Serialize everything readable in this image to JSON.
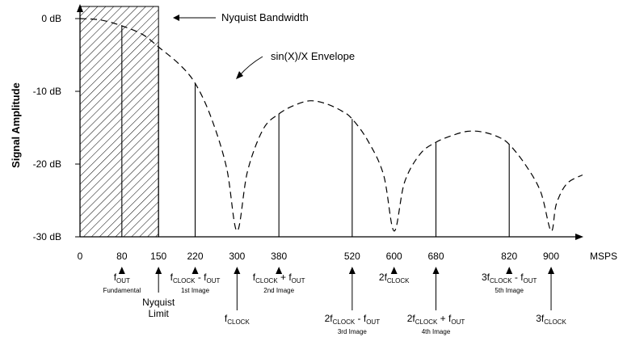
{
  "chart_data": {
    "type": "line",
    "ylabel": "Signal Amplitude",
    "xunit": "MSPS",
    "ylim": [
      -30,
      0
    ],
    "yticks": [
      {
        "v": 0,
        "label": "0 dB"
      },
      {
        "v": -10,
        "label": "-10 dB"
      },
      {
        "v": -20,
        "label": "-20 dB"
      },
      {
        "v": -30,
        "label": "-30 dB"
      }
    ],
    "xticks": [
      {
        "v": 0,
        "label": "0"
      },
      {
        "v": 80,
        "label": "80"
      },
      {
        "v": 150,
        "label": "150"
      },
      {
        "v": 220,
        "label": "220"
      },
      {
        "v": 300,
        "label": "300"
      },
      {
        "v": 380,
        "label": "380"
      },
      {
        "v": 520,
        "label": "520"
      },
      {
        "v": 600,
        "label": "600"
      },
      {
        "v": 680,
        "label": "680"
      },
      {
        "v": 820,
        "label": "820"
      },
      {
        "v": 900,
        "label": "900"
      }
    ],
    "nyquist_region": [
      0,
      150
    ],
    "envelope": {
      "style": "dashed",
      "points": [
        [
          0,
          0
        ],
        [
          40,
          -0.2
        ],
        [
          80,
          -1.0
        ],
        [
          120,
          -2.2
        ],
        [
          150,
          -3.9
        ],
        [
          190,
          -6.3
        ],
        [
          220,
          -8.9
        ],
        [
          250,
          -13.5
        ],
        [
          280,
          -20.5
        ],
        [
          300,
          -29.2
        ],
        [
          320,
          -21
        ],
        [
          350,
          -15.2
        ],
        [
          380,
          -13.1
        ],
        [
          410,
          -11.9
        ],
        [
          440,
          -11.3
        ],
        [
          470,
          -11.7
        ],
        [
          500,
          -12.7
        ],
        [
          520,
          -13.8
        ],
        [
          550,
          -16.8
        ],
        [
          580,
          -21.5
        ],
        [
          600,
          -29.2
        ],
        [
          620,
          -22.5
        ],
        [
          650,
          -18.6
        ],
        [
          680,
          -17
        ],
        [
          710,
          -16.1
        ],
        [
          740,
          -15.5
        ],
        [
          770,
          -15.6
        ],
        [
          800,
          -16.3
        ],
        [
          820,
          -17.3
        ],
        [
          850,
          -20
        ],
        [
          880,
          -23.8
        ],
        [
          900,
          -29.2
        ],
        [
          910,
          -25.5
        ],
        [
          930,
          -22.7
        ],
        [
          960,
          -21.5
        ]
      ]
    },
    "spectral_lines": [
      {
        "x": 80,
        "y": -1.0
      },
      {
        "x": 150,
        "y": -3.9
      },
      {
        "x": 220,
        "y": -8.9
      },
      {
        "x": 380,
        "y": -13.1
      },
      {
        "x": 520,
        "y": -13.8
      },
      {
        "x": 680,
        "y": -17.0
      },
      {
        "x": 820,
        "y": -17.3
      }
    ],
    "annotations": {
      "nyquist_bandwidth": "Nyquist Bandwidth",
      "envelope_label": "sin(X)/X Envelope",
      "markers": [
        {
          "x": 80,
          "level": 1,
          "main": "f",
          "sub": "OUT",
          "note": "Fundamental"
        },
        {
          "x": 150,
          "level": 2,
          "lines": [
            "Nyquist",
            "Limit"
          ]
        },
        {
          "x": 220,
          "level": 1,
          "main": "f",
          "sub": "CLOCK",
          "tail": " - f",
          "sub2": "OUT",
          "note": "1st Image"
        },
        {
          "x": 300,
          "level": 3,
          "main": "f",
          "sub": "CLOCK"
        },
        {
          "x": 380,
          "level": 1,
          "main": "f",
          "sub": "CLOCK",
          "tail": " + f",
          "sub2": "OUT",
          "note": "2nd Image"
        },
        {
          "x": 520,
          "level": 3,
          "main": "2f",
          "sub": "CLOCK",
          "tail": " - f",
          "sub2": "OUT",
          "note": "3rd Image"
        },
        {
          "x": 600,
          "level": 1,
          "main": "2f",
          "sub": "CLOCK"
        },
        {
          "x": 680,
          "level": 3,
          "main": "2f",
          "sub": "CLOCK",
          "tail": " + f",
          "sub2": "OUT",
          "note": "4th Image"
        },
        {
          "x": 820,
          "level": 1,
          "main": "3f",
          "sub": "CLOCK",
          "tail": " - f",
          "sub2": "OUT",
          "note": "5th Image"
        },
        {
          "x": 900,
          "level": 3,
          "main": "3f",
          "sub": "CLOCK"
        }
      ]
    }
  }
}
